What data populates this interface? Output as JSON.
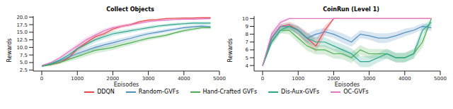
{
  "chart_data": [
    {
      "type": "line",
      "title": "Collect Objects",
      "x_label": "Episodes",
      "y_label": "Rewards",
      "grid": false,
      "legend": "bottom",
      "x": [
        0,
        250,
        500,
        750,
        1000,
        1250,
        1500,
        1750,
        2000,
        2250,
        2500,
        2750,
        3000,
        3250,
        3500,
        3750,
        4000,
        4250,
        4500,
        4750
      ],
      "xlim": [
        -240,
        5000
      ],
      "xticks": [
        0,
        1000,
        2000,
        3000,
        4000,
        5000
      ],
      "ylim": [
        2.2,
        20.3
      ],
      "yticks": [
        {
          "value": 2.5,
          "label": "2.5"
        },
        {
          "value": 5,
          "label": "5.0"
        },
        {
          "value": 7.5,
          "label": "7.5"
        },
        {
          "value": 10,
          "label": "10.0"
        },
        {
          "value": 12.5,
          "label": "12.5"
        },
        {
          "value": 15,
          "label": "15.0"
        },
        {
          "value": 17.5,
          "label": "17.5"
        },
        {
          "value": 20,
          "label": "20.0"
        }
      ],
      "series": [
        {
          "name": "DDQN",
          "color": "#e8474a",
          "values": [
            4.0,
            4.3,
            5.0,
            6.5,
            9.5,
            11.5,
            13.5,
            14.5,
            16.0,
            17.0,
            17.5,
            18.5,
            19.0,
            19.2,
            19.5,
            19.6,
            19.7,
            19.7,
            19.8,
            19.8
          ],
          "errors": [
            0.2,
            0.3,
            0.4,
            0.6,
            0.8,
            0.9,
            0.8,
            0.7,
            0.6,
            0.5,
            0.5,
            0.4,
            0.3,
            0.3,
            0.2,
            0.2,
            0.2,
            0.2,
            0.2,
            0.2
          ]
        },
        {
          "name": "Random-GVFs",
          "color": "#4f8fc0",
          "values": [
            3.8,
            4.5,
            5.5,
            6.8,
            8.0,
            9.0,
            10.0,
            10.8,
            11.5,
            12.3,
            13.0,
            13.8,
            14.5,
            15.0,
            15.5,
            16.0,
            16.5,
            16.8,
            17.0,
            16.8
          ],
          "errors": [
            0.3,
            0.4,
            0.5,
            0.7,
            0.9,
            1.0,
            1.0,
            0.9,
            0.9,
            0.8,
            0.8,
            0.7,
            0.7,
            0.6,
            0.6,
            0.5,
            0.5,
            0.5,
            0.5,
            0.5
          ]
        },
        {
          "name": "Hand-Crafted GVFs",
          "color": "#4caf50",
          "values": [
            3.8,
            4.3,
            5.0,
            6.0,
            7.0,
            8.0,
            9.0,
            9.5,
            10.0,
            10.8,
            11.5,
            12.3,
            13.0,
            13.5,
            14.0,
            14.8,
            15.5,
            16.0,
            16.5,
            16.5
          ],
          "errors": [
            0.3,
            0.4,
            0.5,
            0.7,
            0.9,
            1.0,
            1.0,
            0.9,
            0.9,
            0.8,
            0.8,
            0.7,
            0.7,
            0.6,
            0.6,
            0.5,
            0.5,
            0.5,
            0.5,
            0.5
          ]
        },
        {
          "name": "Dis-Aux-GVFs",
          "color": "#2ca58d",
          "values": [
            3.9,
            4.6,
            5.8,
            7.5,
            9.5,
            11.0,
            12.5,
            13.5,
            14.5,
            15.0,
            15.5,
            16.0,
            16.5,
            17.0,
            17.3,
            17.6,
            17.8,
            18.0,
            18.0,
            18.0
          ],
          "errors": [
            0.3,
            0.4,
            0.5,
            0.7,
            0.8,
            0.9,
            0.9,
            0.8,
            0.8,
            0.7,
            0.7,
            0.6,
            0.6,
            0.5,
            0.5,
            0.5,
            0.5,
            0.5,
            0.5,
            0.5
          ]
        },
        {
          "name": "OC-GVFs",
          "color": "#e377c2",
          "values": [
            4.0,
            5.0,
            6.5,
            8.5,
            10.5,
            12.5,
            14.0,
            15.5,
            16.5,
            17.0,
            17.5,
            18.0,
            18.5,
            18.8,
            19.0,
            19.2,
            19.3,
            19.3,
            19.4,
            19.5
          ],
          "errors": [
            0.2,
            0.3,
            0.5,
            0.7,
            0.8,
            0.9,
            0.8,
            0.7,
            0.6,
            0.5,
            0.5,
            0.4,
            0.4,
            0.3,
            0.3,
            0.3,
            0.3,
            0.3,
            0.3,
            0.3
          ]
        }
      ]
    },
    {
      "type": "line",
      "title": "CoinRun (Level 1)",
      "x_label": "Episodes",
      "y_label": "Rewards",
      "grid": false,
      "x": [
        0,
        250,
        500,
        750,
        1000,
        1250,
        1500,
        1750,
        2000,
        2250,
        2500,
        2750,
        3000,
        3250,
        3500,
        3750,
        4000,
        4250,
        4500,
        4750
      ],
      "xlim": [
        -240,
        5000
      ],
      "xticks": [
        0,
        1000,
        2000,
        3000,
        4000,
        5000
      ],
      "ylim": [
        3.3,
        10.3
      ],
      "yticks": [
        4,
        5,
        6,
        7,
        8,
        9,
        10
      ],
      "series": [
        {
          "name": "DDQN",
          "color": "#e8474a",
          "values": [
            4.0,
            7.5,
            9.0,
            9.2,
            8.5,
            7.5,
            6.5,
            8.5,
            10.0,
            10.0,
            10.0,
            10.0,
            10.0,
            10.0,
            10.0,
            10.0,
            10.0,
            10.0,
            10.0,
            10.0
          ],
          "errors": [
            0.2,
            0.4,
            0.3,
            0.4,
            0.6,
            0.8,
            0.8,
            0.6,
            0.1,
            0,
            0,
            0,
            0,
            0,
            0,
            0,
            0,
            0,
            0,
            0
          ]
        },
        {
          "name": "Random-GVFs",
          "color": "#4f8fc0",
          "values": [
            4.0,
            7.5,
            9.0,
            9.0,
            8.5,
            7.5,
            8.0,
            8.3,
            8.0,
            7.5,
            7.0,
            8.0,
            7.8,
            7.5,
            7.5,
            7.8,
            8.2,
            8.5,
            9.0,
            8.8
          ],
          "errors": [
            0.2,
            0.4,
            0.3,
            0.4,
            0.5,
            0.6,
            0.6,
            0.5,
            0.5,
            0.6,
            0.6,
            0.5,
            0.5,
            0.6,
            0.6,
            0.5,
            0.5,
            0.4,
            0.4,
            0.4
          ]
        },
        {
          "name": "Hand-Crafted GVFs",
          "color": "#4caf50",
          "values": [
            4.0,
            7.0,
            8.5,
            8.5,
            7.5,
            6.5,
            6.0,
            6.0,
            5.5,
            5.5,
            5.0,
            6.0,
            5.5,
            5.5,
            5.5,
            5.0,
            5.0,
            5.5,
            7.0,
            10.0
          ],
          "errors": [
            0.2,
            0.4,
            0.4,
            0.5,
            0.6,
            0.6,
            0.6,
            0.6,
            0.6,
            0.7,
            0.7,
            0.6,
            0.6,
            0.6,
            0.6,
            0.6,
            0.6,
            0.6,
            0.7,
            0.1
          ]
        },
        {
          "name": "Dis-Aux-GVFs",
          "color": "#2ca58d",
          "values": [
            4.0,
            7.0,
            8.5,
            9.0,
            8.5,
            7.5,
            7.0,
            7.0,
            6.5,
            6.0,
            5.5,
            4.5,
            4.5,
            5.0,
            5.5,
            5.0,
            5.0,
            5.5,
            8.5,
            9.5
          ],
          "errors": [
            0.2,
            0.4,
            0.4,
            0.4,
            0.5,
            0.6,
            0.6,
            0.6,
            0.6,
            0.7,
            0.7,
            0.7,
            0.7,
            0.6,
            0.6,
            0.6,
            0.6,
            0.6,
            0.6,
            0.4
          ]
        },
        {
          "name": "OC-GVFs",
          "color": "#e377c2",
          "values": [
            4.0,
            8.0,
            9.5,
            10.0,
            10.0,
            10.0,
            10.0,
            10.0,
            10.0,
            10.0,
            10.0,
            10.0,
            10.0,
            10.0,
            10.0,
            10.0,
            10.0,
            10.0,
            10.0,
            10.0
          ],
          "errors": [
            0.2,
            0.4,
            0.3,
            0.1,
            0,
            0,
            0,
            0,
            0,
            0,
            0,
            0,
            0,
            0,
            0,
            0,
            0,
            0,
            0,
            0
          ]
        }
      ]
    }
  ]
}
